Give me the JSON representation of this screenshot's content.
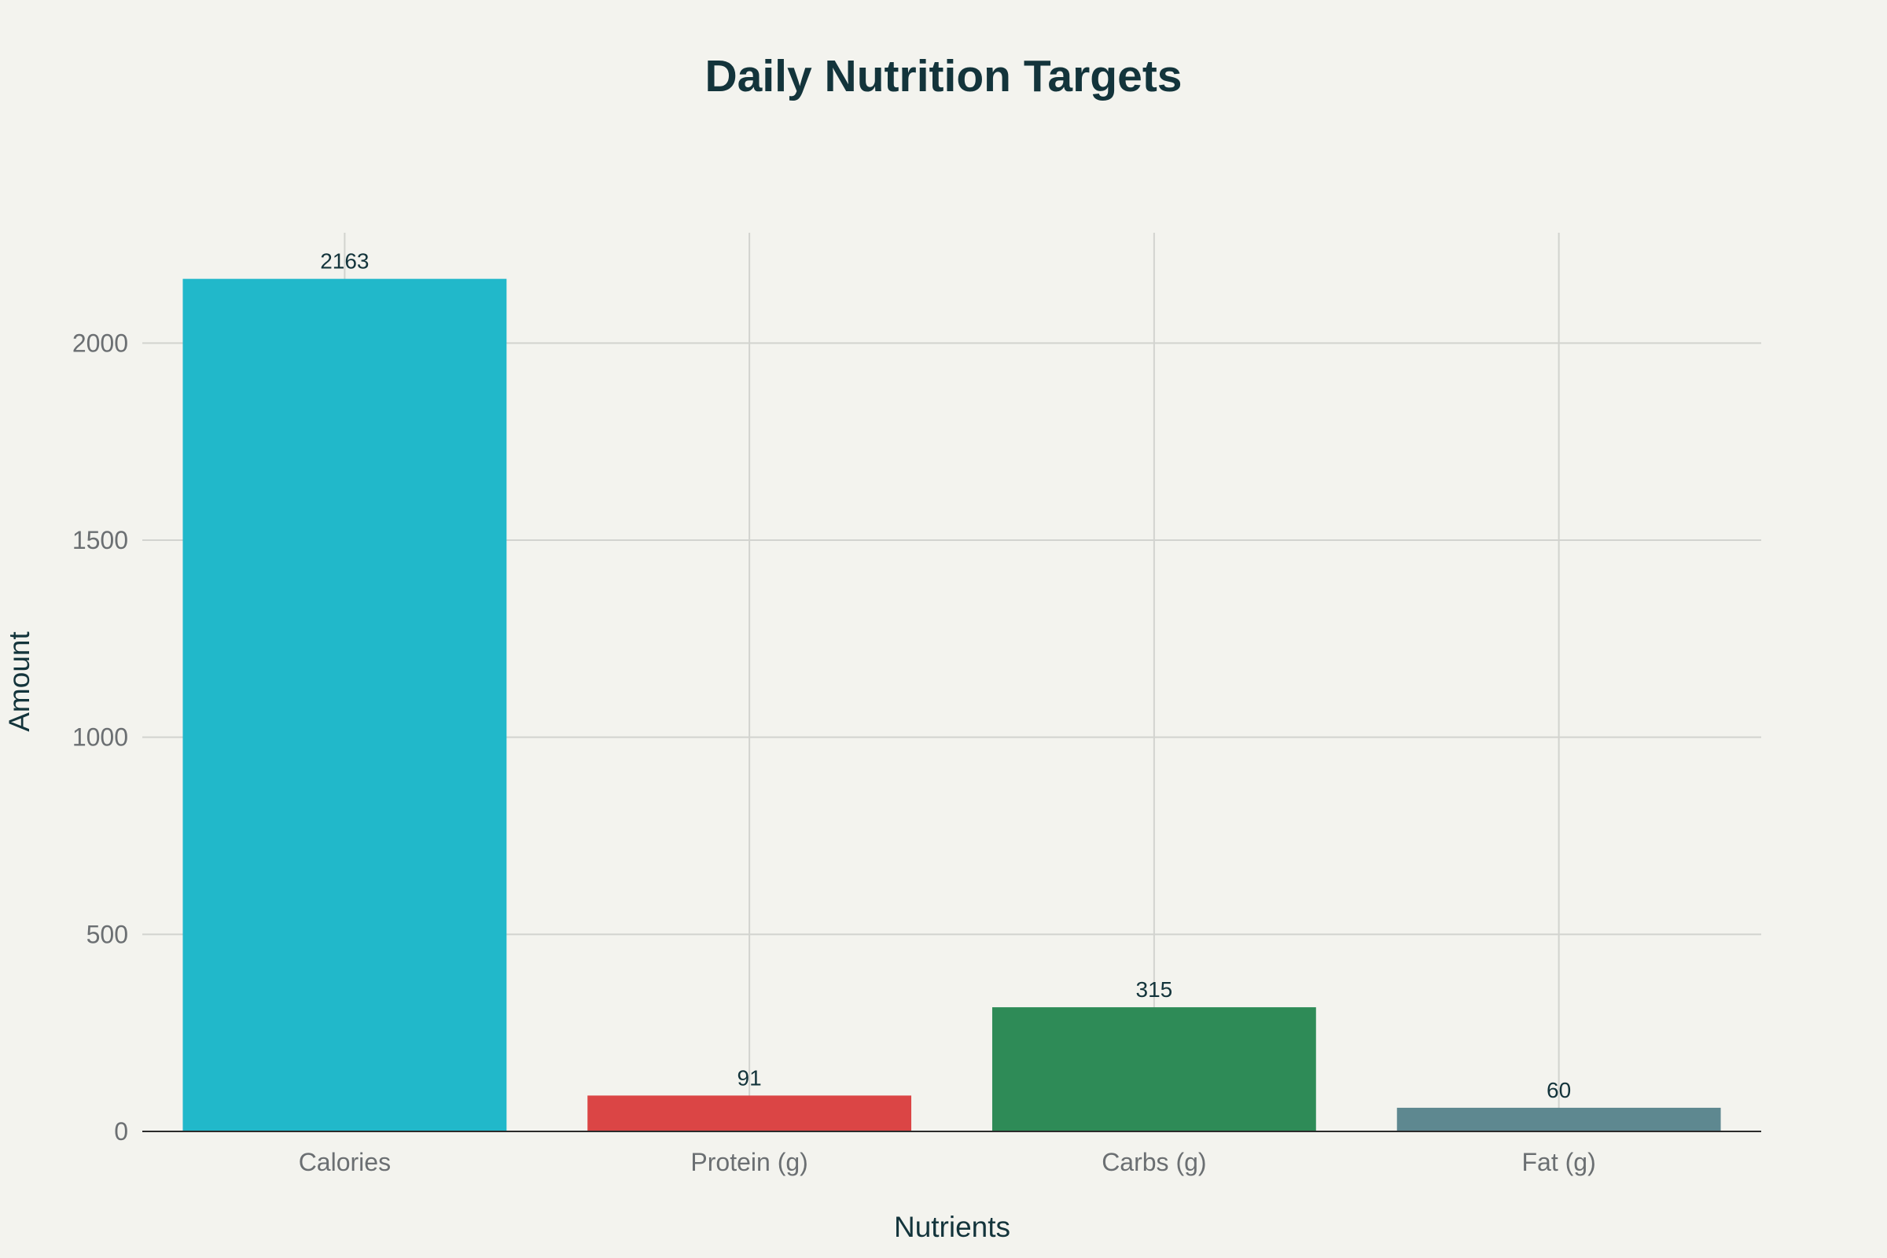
{
  "chart_data": {
    "type": "bar",
    "title": "Daily Nutrition Targets",
    "xlabel": "Nutrients",
    "ylabel": "Amount",
    "categories": [
      "Calories",
      "Protein (g)",
      "Carbs (g)",
      "Fat (g)"
    ],
    "values": [
      2163,
      91,
      315,
      60
    ],
    "data_labels": [
      "2163",
      "91",
      "315",
      "60"
    ],
    "colors": [
      "#21b8ca",
      "#db4545",
      "#2e8b57",
      "#5e8890"
    ],
    "ylim": [
      0,
      2280
    ],
    "yticks": [
      0,
      500,
      1000,
      1500,
      2000
    ],
    "ytick_labels": [
      "0",
      "500",
      "1000",
      "1500",
      "2000"
    ],
    "grid": true,
    "legend": "none"
  }
}
